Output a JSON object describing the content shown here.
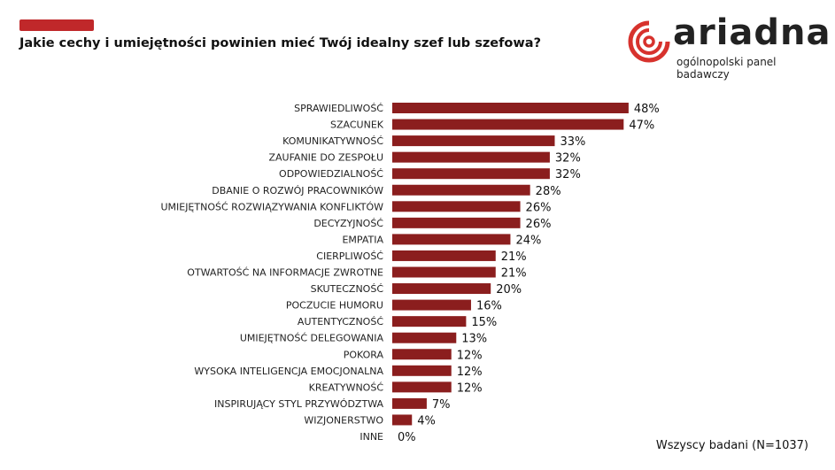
{
  "header": {
    "title": "Jakie cechy i umiejętności powinien mieć Twój idealny szef lub szefowa?"
  },
  "logo": {
    "name": "ariadna",
    "tagline": "ogólnopolski panel badawczy",
    "color": "#d7322d"
  },
  "footnote": "Wszyscy badani (N=1037)",
  "chart_data": {
    "type": "bar",
    "orientation": "horizontal",
    "title": "Jakie cechy i umiejętności powinien mieć Twój idealny szef lub szefowa?",
    "bar_color": "#8b1e1e",
    "categories": [
      "SPRAWIEDLIWOŚĆ",
      "SZACUNEK",
      "KOMUNIKATYWNOŚĆ",
      "ZAUFANIE DO ZESPOŁU",
      "ODPOWIEDZIALNOŚĆ",
      "DBANIE O ROZWÓJ PRACOWNIKÓW",
      "UMIEJĘTNOŚĆ ROZWIĄZYWANIA KONFLIKTÓW",
      "DECYZYJNOŚĆ",
      "EMPATIA",
      "CIERPLIWOŚĆ",
      "OTWARTOŚĆ NA INFORMACJE ZWROTNE",
      "SKUTECZNOŚĆ",
      "POCZUCIE HUMORU",
      "AUTENTYCZNOŚĆ",
      "UMIEJĘTNOŚĆ DELEGOWANIA",
      "POKORA",
      "WYSOKA INTELIGENCJA EMOCJONALNA",
      "KREATYWNOŚĆ",
      "INSPIRUJĄCY STYL PRZYWÓDZTWA",
      "WIZJONERSTWO",
      "INNE"
    ],
    "values": [
      48,
      47,
      33,
      32,
      32,
      28,
      26,
      26,
      24,
      21,
      21,
      20,
      16,
      15,
      13,
      12,
      12,
      12,
      7,
      4,
      0
    ],
    "value_labels": [
      "48%",
      "47%",
      "33%",
      "32%",
      "32%",
      "28%",
      "26%",
      "26%",
      "24%",
      "21%",
      "21%",
      "20%",
      "16%",
      "15%",
      "13%",
      "12%",
      "12%",
      "12%",
      "7%",
      "4%",
      "0%"
    ],
    "grid": false,
    "legend": "none"
  }
}
